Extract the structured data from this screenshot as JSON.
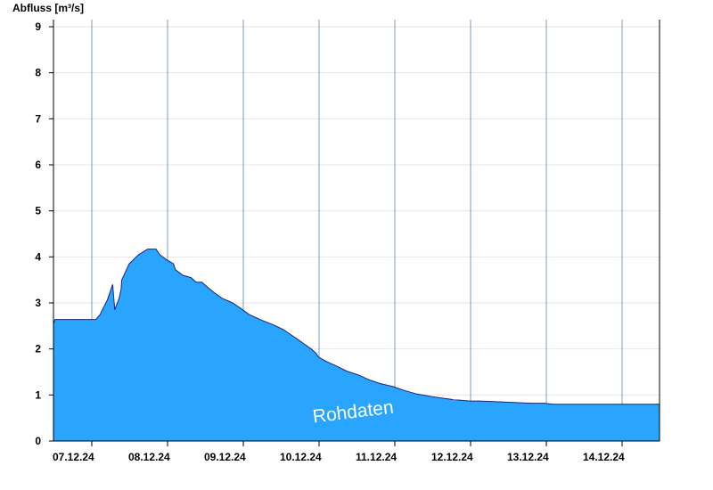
{
  "chart_data": {
    "type": "area",
    "title": "",
    "ylabel": "Abfluss [m³/s]",
    "xlabel": "",
    "ylim": [
      0,
      9
    ],
    "yticks": [
      0,
      1,
      2,
      3,
      4,
      5,
      6,
      7,
      8,
      9
    ],
    "xlim": [
      "06.12.24 12:00",
      "14.12.24 12:00"
    ],
    "day_boundaries": [
      "07.12.24 00:00",
      "08.12.24 00:00",
      "09.12.24 00:00",
      "10.12.24 00:00",
      "11.12.24 00:00",
      "12.12.24 00:00",
      "13.12.24 00:00",
      "14.12.24 00:00"
    ],
    "x_tick_labels": [
      {
        "label": "07.12.24",
        "at": "07.12.24 00:00"
      },
      {
        "label": "08.12.24",
        "at": "08.12.24 00:00"
      },
      {
        "label": "09.12.24",
        "at": "09.12.24 00:00"
      },
      {
        "label": "10.12.24",
        "at": "10.12.24 00:00"
      },
      {
        "label": "11.12.24",
        "at": "11.12.24 00:00"
      },
      {
        "label": "12.12.24",
        "at": "12.12.24 00:00"
      },
      {
        "label": "13.12.24",
        "at": "13.12.24 00:00"
      },
      {
        "label": "14.12.24",
        "at": "14.12.24 00:00"
      }
    ],
    "grid": true,
    "fill_color": "#29a5ff",
    "line_color": "#1a237e",
    "watermark": "Rohdaten",
    "series": [
      {
        "x": [
          "06.12.24 12:00",
          "06.12.24 12:30",
          "07.12.24 01:24",
          "07.12.24 02:48",
          "07.12.24 03:50",
          "07.12.24 05:00",
          "07.12.24 06:45",
          "07.12.24 07:26",
          "07.12.24 08:47",
          "07.12.24 09:25",
          "07.12.24 09:38",
          "07.12.24 12:00",
          "07.12.24 15:00",
          "07.12.24 17:50",
          "07.12.24 20:30",
          "07.12.24 21:40",
          "07.12.24 23:35",
          "08.12.24 02:00",
          "08.12.24 02:40",
          "08.12.24 05:00",
          "08.12.24 07:35",
          "08.12.24 09:10",
          "08.12.24 11:00",
          "08.12.24 13:00",
          "08.12.24 15:00",
          "08.12.24 17:25",
          "08.12.24 20:45",
          "09.12.24 00:00",
          "09.12.24 01:56",
          "09.12.24 06:05",
          "09.12.24 09:50",
          "09.12.24 12:55",
          "09.12.24 15:00",
          "09.12.24 17:30",
          "09.12.24 19:35",
          "09.12.24 21:40",
          "09.12.24 23:15",
          "10.12.24 00:00",
          "10.12.24 02:40",
          "10.12.24 05:55",
          "10.12.24 08:50",
          "10.12.24 12:45",
          "10.12.24 16:00",
          "10.12.24 19:20",
          "10.12.24 23:40",
          "11.12.24 03:05",
          "11.12.24 07:10",
          "11.12.24 12:10",
          "11.12.24 18:30",
          "12.12.24 00:00",
          "12.12.24 03:05",
          "12.12.24 09:50",
          "12.12.24 19:10",
          "12.12.24 23:35",
          "13.12.24 02:15",
          "13.12.24 14:05",
          "13.12.24 22:30",
          "14.12.24 07:25",
          "14.12.24 12:00"
        ],
        "y": [
          2.55,
          2.64,
          2.64,
          2.75,
          2.9,
          3.05,
          3.4,
          2.85,
          3.1,
          3.3,
          3.5,
          3.85,
          4.05,
          4.17,
          4.17,
          4.05,
          3.95,
          3.85,
          3.72,
          3.6,
          3.55,
          3.45,
          3.45,
          3.33,
          3.22,
          3.1,
          3.0,
          2.85,
          2.75,
          2.62,
          2.52,
          2.42,
          2.32,
          2.2,
          2.1,
          2.0,
          1.9,
          1.82,
          1.72,
          1.62,
          1.52,
          1.43,
          1.33,
          1.25,
          1.18,
          1.1,
          1.02,
          0.96,
          0.9,
          0.87,
          0.87,
          0.85,
          0.82,
          0.82,
          0.8,
          0.8,
          0.8,
          0.8,
          0.8
        ]
      }
    ]
  }
}
